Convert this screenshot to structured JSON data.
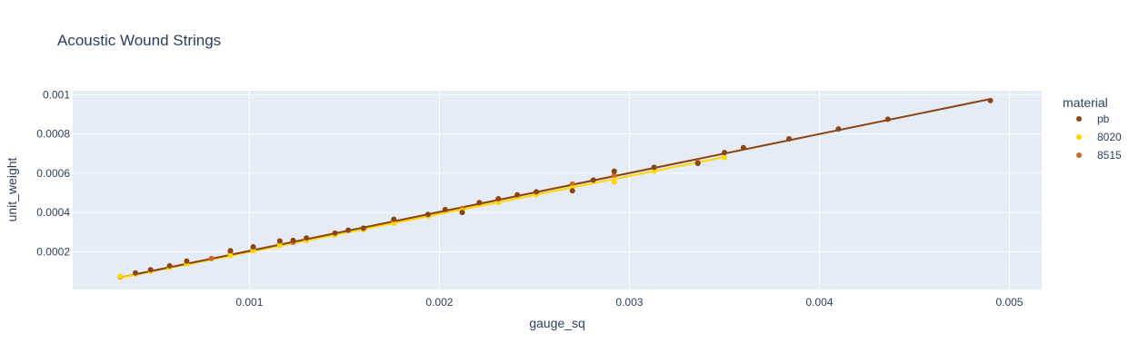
{
  "chart_data": {
    "type": "scatter",
    "title": "Acoustic Wound Strings",
    "xlabel": "gauge_sq",
    "ylabel": "unit_weight",
    "xlim": [
      7e-05,
      0.00517
    ],
    "ylim": [
      7.5e-06,
      0.00102
    ],
    "xticks": [
      0.001,
      0.002,
      0.003,
      0.004,
      0.005
    ],
    "xtick_labels": [
      "0.001",
      "0.002",
      "0.003",
      "0.004",
      "0.005"
    ],
    "yticks": [
      0.0002,
      0.0004,
      0.0006,
      0.0008,
      0.001
    ],
    "ytick_labels": [
      "0.0002",
      "0.0004",
      "0.0006",
      "0.0008",
      "0.001"
    ],
    "grid": true,
    "plot_background": "#e5ecf6",
    "legend": {
      "title": "material",
      "position": "right"
    },
    "series": [
      {
        "name": "pb",
        "color": "#8b4513",
        "points": [
          [
            0.0004,
            9.2e-05
          ],
          [
            0.00048,
            0.000108
          ],
          [
            0.00058,
            0.000128
          ],
          [
            0.00067,
            0.000152
          ],
          [
            0.0009,
            0.000205
          ],
          [
            0.00102,
            0.000225
          ],
          [
            0.00116,
            0.000255
          ],
          [
            0.00123,
            0.000258
          ],
          [
            0.0013,
            0.00027
          ],
          [
            0.00145,
            0.000295
          ],
          [
            0.00152,
            0.00031
          ],
          [
            0.0016,
            0.00032
          ],
          [
            0.00176,
            0.000365
          ],
          [
            0.00194,
            0.00039
          ],
          [
            0.00203,
            0.000415
          ],
          [
            0.00212,
            0.0004
          ],
          [
            0.00221,
            0.00045
          ],
          [
            0.00231,
            0.00047
          ],
          [
            0.00241,
            0.00049
          ],
          [
            0.00251,
            0.000505
          ],
          [
            0.0027,
            0.00051
          ],
          [
            0.00281,
            0.000565
          ],
          [
            0.00292,
            0.00061
          ],
          [
            0.00313,
            0.00063
          ],
          [
            0.00336,
            0.00065
          ],
          [
            0.0035,
            0.000705
          ],
          [
            0.0036,
            0.00073
          ],
          [
            0.00384,
            0.000775
          ],
          [
            0.0041,
            0.000825
          ],
          [
            0.00436,
            0.000875
          ],
          [
            0.0049,
            0.00097
          ]
        ],
        "trendline": [
          [
            0.0004,
            8.5e-05
          ],
          [
            0.0049,
            0.000978
          ]
        ]
      },
      {
        "name": "8020",
        "color": "#ffd700",
        "points": [
          [
            0.00032,
            7.5e-05
          ],
          [
            0.0004,
            8.6e-05
          ],
          [
            0.00048,
            0.0001
          ],
          [
            0.00058,
            0.00012
          ],
          [
            0.00067,
            0.000138
          ],
          [
            0.0009,
            0.00018
          ],
          [
            0.00102,
            0.000205
          ],
          [
            0.00116,
            0.000232
          ],
          [
            0.0013,
            0.000258
          ],
          [
            0.00145,
            0.000285
          ],
          [
            0.0016,
            0.000312
          ],
          [
            0.00176,
            0.000345
          ],
          [
            0.00194,
            0.00038
          ],
          [
            0.00212,
            0.00041
          ],
          [
            0.00231,
            0.000452
          ],
          [
            0.00251,
            0.00049
          ],
          [
            0.0027,
            0.000525
          ],
          [
            0.00292,
            0.000555
          ],
          [
            0.00313,
            0.00061
          ],
          [
            0.0035,
            0.00068
          ]
        ],
        "trendline": [
          [
            0.00032,
            6.7e-05
          ],
          [
            0.0035,
            0.000682
          ]
        ]
      },
      {
        "name": "8515",
        "color": "#d2691e",
        "points": [
          [
            0.00032,
            7.2e-05
          ],
          [
            0.0004,
            9e-05
          ],
          [
            0.00048,
            0.000102
          ],
          [
            0.00058,
            0.000122
          ],
          [
            0.00067,
            0.00014
          ],
          [
            0.0008,
            0.000165
          ],
          [
            0.0009,
            0.000195
          ],
          [
            0.00102,
            0.000215
          ],
          [
            0.00116,
            0.00024
          ],
          [
            0.00123,
            0.000248
          ],
          [
            0.0013,
            0.000262
          ],
          [
            0.00145,
            0.00029
          ],
          [
            0.0016,
            0.000315
          ],
          [
            0.00176,
            0.00036
          ],
          [
            0.00194,
            0.000388
          ],
          [
            0.00212,
            0.00042
          ],
          [
            0.00231,
            0.000465
          ],
          [
            0.00251,
            0.0005
          ],
          [
            0.0027,
            0.000545
          ],
          [
            0.00292,
            0.00059
          ],
          [
            0.00313,
            0.000628
          ],
          [
            0.00336,
            0.000655
          ]
        ],
        "trendline": [
          [
            0.00032,
            6.9e-05
          ],
          [
            0.00336,
            0.000672
          ]
        ]
      }
    ]
  }
}
